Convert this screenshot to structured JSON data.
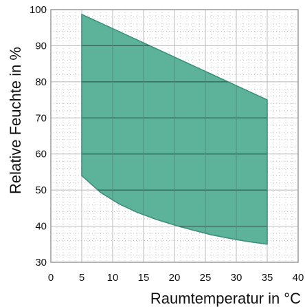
{
  "chart_data": {
    "type": "area",
    "title": "",
    "xlabel": "Raumtemperatur in °C",
    "ylabel": "Relative Feuchte in %",
    "xlim": [
      0,
      40
    ],
    "ylim": [
      30,
      100
    ],
    "x_ticks": [
      0,
      5,
      10,
      15,
      20,
      25,
      30,
      35,
      40
    ],
    "y_ticks": [
      30,
      40,
      50,
      60,
      70,
      80,
      90,
      100
    ],
    "x_tick_labels": [
      "0",
      "5",
      "10",
      "15",
      "20",
      "25",
      "30",
      "35",
      "40"
    ],
    "y_tick_labels": [
      "30",
      "40",
      "50",
      "60",
      "70",
      "80",
      "90",
      "100"
    ],
    "grid": true,
    "series": [
      {
        "fill_color": "#5cb39a",
        "edge_color": "#3f8f7d",
        "upper": {
          "x": [
            5,
            35
          ],
          "y": [
            98.7,
            75
          ]
        },
        "lower": {
          "x": [
            5,
            8,
            11,
            14,
            17,
            20,
            23,
            26,
            29,
            32,
            35
          ],
          "y": [
            54,
            49.4,
            46.2,
            43.8,
            41.9,
            40.3,
            38.9,
            37.6,
            36.6,
            35.7,
            35
          ]
        }
      }
    ]
  }
}
